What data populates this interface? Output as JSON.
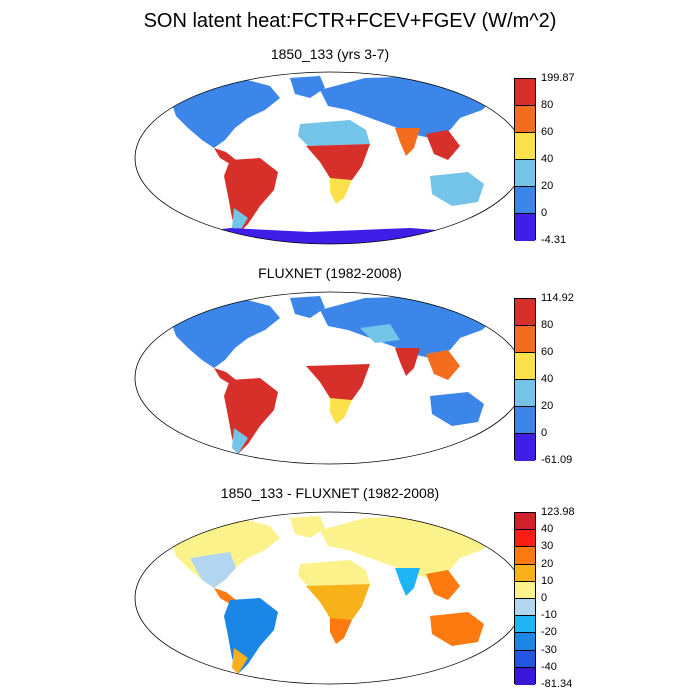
{
  "title": "SON latent heat:FCTR+FCEV+FGEV (W/m^2)",
  "panels": [
    {
      "title": "1850_133 (yrs 3-7)",
      "colorbar": {
        "labels": [
          "199.87",
          "80",
          "60",
          "40",
          "20",
          "0",
          "-4.31"
        ],
        "colors": [
          "#d7302a",
          "#f46d1e",
          "#fde14a",
          "#74c4ea",
          "#3b86e8",
          "#3f1fe8"
        ]
      }
    },
    {
      "title": "FLUXNET (1982-2008)",
      "colorbar": {
        "labels": [
          "114.92",
          "80",
          "60",
          "40",
          "20",
          "0",
          "-61.09"
        ],
        "colors": [
          "#d7302a",
          "#f46d1e",
          "#fde14a",
          "#74c4ea",
          "#3b86e8",
          "#3f1fe8"
        ]
      }
    },
    {
      "title": "1850_133 - FLUXNET (1982-2008)",
      "colorbar": {
        "labels": [
          "123.98",
          "40",
          "30",
          "20",
          "10",
          "0",
          "-10",
          "-20",
          "-30",
          "-40",
          "-81.34"
        ],
        "colors": [
          "#d2202a",
          "#fa1d12",
          "#fd7a10",
          "#f7b11b",
          "#fcf28c",
          "#b3d6f0",
          "#1fb4f5",
          "#1a86e6",
          "#2156e0",
          "#3a17d8"
        ]
      }
    }
  ]
}
